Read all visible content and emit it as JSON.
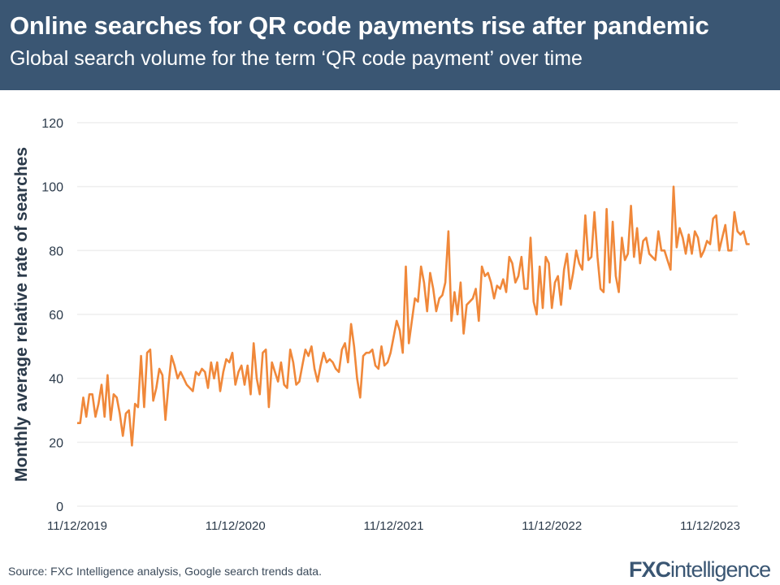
{
  "header": {
    "title": "Online searches for QR code payments rise after pandemic",
    "subtitle": "Global search volume for the term ‘QR code payment’ over time"
  },
  "footer": {
    "source": "Source: FXC Intelligence analysis, Google search trends data.",
    "logo_bold": "FXC",
    "logo_light": "intelligence"
  },
  "chart_data": {
    "type": "line",
    "title": "",
    "xlabel": "",
    "ylabel": "Monthly average relative rate of searches",
    "ylim": [
      0,
      120
    ],
    "yticks": [
      0,
      20,
      40,
      60,
      80,
      100,
      120
    ],
    "xticks": [
      "11/12/2019",
      "11/12/2020",
      "11/12/2021",
      "11/12/2022",
      "11/12/2023"
    ],
    "x_interval": "weekly",
    "grid": true,
    "color": "#f0883a",
    "values": [
      26,
      26,
      34,
      28,
      35,
      35,
      28,
      32,
      38,
      28,
      41,
      27,
      35,
      34,
      29,
      22,
      29,
      30,
      19,
      32,
      31,
      47,
      31,
      48,
      49,
      33,
      37,
      43,
      41,
      27,
      38,
      47,
      44,
      40,
      42,
      40,
      38,
      37,
      36,
      42,
      41,
      43,
      42,
      37,
      45,
      40,
      45,
      36,
      42,
      46,
      45,
      48,
      38,
      42,
      44,
      38,
      44,
      35,
      51,
      40,
      35,
      48,
      49,
      31,
      45,
      42,
      39,
      45,
      38,
      37,
      49,
      45,
      38,
      39,
      44,
      49,
      47,
      50,
      43,
      39,
      44,
      48,
      45,
      46,
      45,
      43,
      42,
      49,
      51,
      45,
      57,
      50,
      40,
      34,
      47,
      48,
      48,
      49,
      44,
      43,
      50,
      44,
      45,
      48,
      53,
      58,
      55,
      48,
      75,
      51,
      58,
      65,
      64,
      75,
      70,
      61,
      73,
      68,
      61,
      65,
      66,
      70,
      86,
      58,
      67,
      60,
      70,
      54,
      63,
      64,
      65,
      68,
      58,
      75,
      72,
      73,
      70,
      65,
      69,
      68,
      71,
      67,
      78,
      76,
      70,
      72,
      78,
      68,
      68,
      84,
      64,
      60,
      75,
      62,
      78,
      76,
      62,
      70,
      72,
      63,
      74,
      79,
      68,
      73,
      80,
      76,
      74,
      91,
      77,
      78,
      92,
      78,
      68,
      67,
      93,
      70,
      89,
      72,
      67,
      84,
      77,
      79,
      94,
      78,
      87,
      76,
      83,
      84,
      79,
      78,
      77,
      86,
      80,
      80,
      77,
      74,
      100,
      81,
      87,
      84,
      79,
      85,
      79,
      86,
      84,
      78,
      80,
      83,
      82,
      90,
      91,
      80,
      84,
      88,
      80,
      80,
      92,
      86,
      85,
      86,
      82,
      82
    ]
  }
}
